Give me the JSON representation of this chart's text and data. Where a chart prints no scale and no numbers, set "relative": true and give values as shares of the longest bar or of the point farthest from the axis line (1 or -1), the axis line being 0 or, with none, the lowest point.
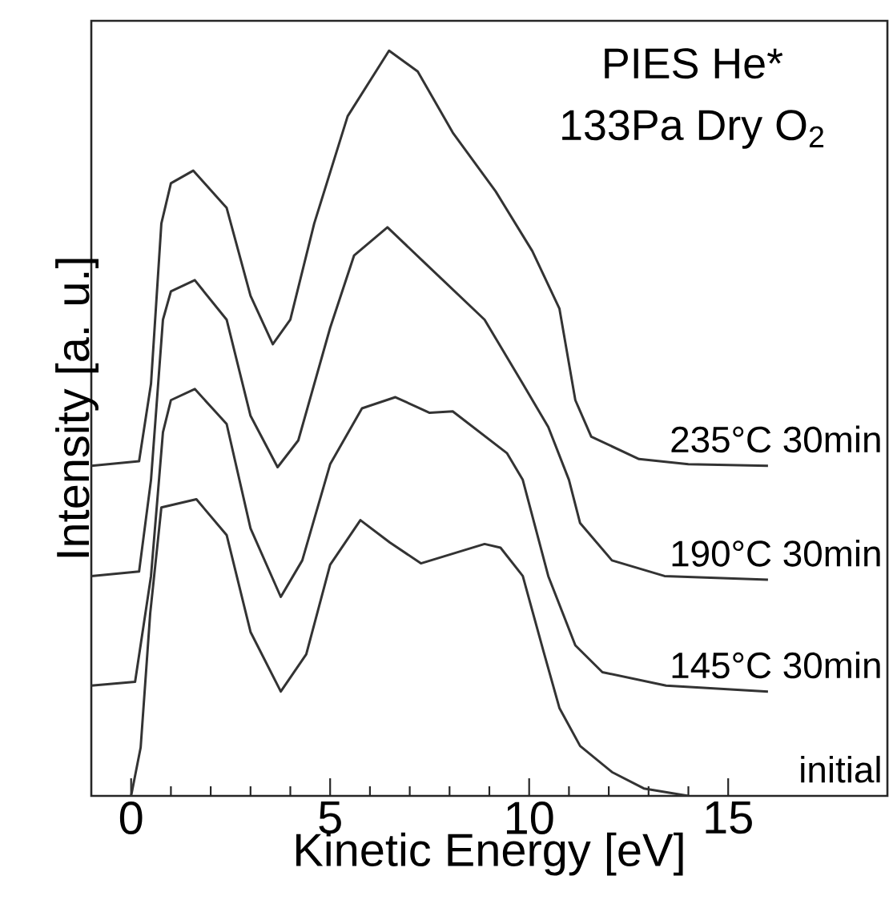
{
  "chart_data": {
    "type": "line",
    "title": "PIES He*",
    "subtitle": "133Pa Dry O$_{2}$",
    "xlabel": "Kinetic Energy [eV]",
    "ylabel": "Intensity [a. u.]",
    "relative": true,
    "xlim": [
      -1,
      19
    ],
    "xticks": [
      0,
      5,
      10,
      15
    ],
    "series": [
      {
        "name": "235°C 30min",
        "color": "#333333",
        "x": [
          -1,
          0.2,
          0.5,
          0.76,
          1.0,
          1.56,
          2.4,
          3.0,
          3.56,
          4.0,
          4.6,
          5.44,
          6.48,
          7.2,
          8.08,
          9.16,
          10.08,
          10.76,
          11.16,
          11.56,
          12.76,
          14,
          16
        ],
        "values": [
          0.443,
          0.449,
          0.553,
          0.768,
          0.822,
          0.839,
          0.789,
          0.671,
          0.606,
          0.639,
          0.768,
          0.912,
          1.0,
          0.972,
          0.89,
          0.811,
          0.731,
          0.654,
          0.531,
          0.482,
          0.452,
          0.445,
          0.443
        ]
      },
      {
        "name": "190°C 30min",
        "color": "#333333",
        "x": [
          -1,
          0.2,
          0.5,
          0.8,
          1.0,
          1.6,
          2.4,
          3.0,
          3.68,
          4.2,
          5.0,
          5.6,
          6.44,
          7.4,
          8.88,
          9.84,
          10.48,
          11.0,
          11.28,
          12.08,
          13.4,
          16
        ],
        "values": [
          0.295,
          0.301,
          0.424,
          0.639,
          0.677,
          0.692,
          0.639,
          0.51,
          0.441,
          0.477,
          0.628,
          0.725,
          0.763,
          0.714,
          0.639,
          0.553,
          0.495,
          0.424,
          0.366,
          0.316,
          0.295,
          0.29
        ]
      },
      {
        "name": "145°C 30min",
        "color": "#333333",
        "x": [
          -1,
          0.1,
          0.5,
          0.8,
          1.0,
          1.6,
          2.4,
          3.0,
          3.76,
          4.3,
          5.0,
          5.8,
          6.64,
          7.5,
          8.08,
          9.44,
          9.84,
          10.48,
          11.16,
          11.84,
          13.44,
          16
        ],
        "values": [
          0.148,
          0.153,
          0.295,
          0.488,
          0.531,
          0.546,
          0.499,
          0.359,
          0.267,
          0.316,
          0.445,
          0.52,
          0.535,
          0.514,
          0.516,
          0.46,
          0.424,
          0.295,
          0.202,
          0.166,
          0.148,
          0.14
        ]
      },
      {
        "name": "initial",
        "color": "#333333",
        "x": [
          0,
          0.24,
          0.48,
          0.76,
          1.64,
          2.4,
          3.0,
          3.76,
          4.4,
          5.0,
          5.76,
          6.5,
          7.28,
          8.88,
          9.28,
          9.84,
          10.36,
          10.76,
          11.28,
          12.08,
          12.88,
          14
        ],
        "values": [
          0,
          0.065,
          0.245,
          0.387,
          0.398,
          0.35,
          0.22,
          0.14,
          0.19,
          0.31,
          0.37,
          0.34,
          0.312,
          0.338,
          0.333,
          0.295,
          0.194,
          0.118,
          0.067,
          0.032,
          0.01,
          0
        ]
      }
    ]
  }
}
